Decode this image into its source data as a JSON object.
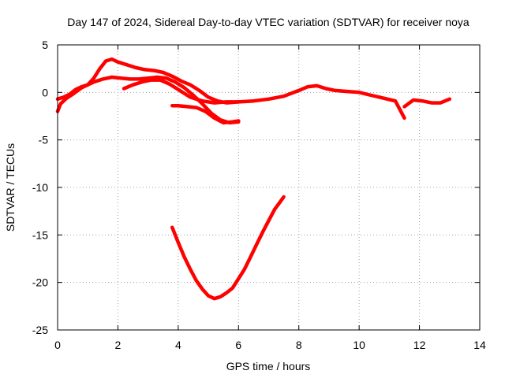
{
  "chart_data": {
    "type": "line",
    "title": "Day 147 of 2024, Sidereal Day-to-day VTEC variation (SDTVAR) for receiver noya",
    "xlabel": "GPS time / hours",
    "ylabel": "SDTVAR / TECUs",
    "xlim": [
      0,
      14
    ],
    "ylim": [
      -25,
      5
    ],
    "xticks": [
      0,
      2,
      4,
      6,
      8,
      10,
      12,
      14
    ],
    "yticks": [
      5,
      0,
      -5,
      -10,
      -15,
      -20,
      -25
    ],
    "grid": true,
    "color": "#ff0000",
    "series": [
      {
        "name": "arc-1",
        "x": [
          0.0,
          0.1,
          0.3,
          0.5,
          0.8,
          1.0,
          1.2,
          1.4,
          1.6,
          1.8,
          2.0,
          2.3,
          2.6,
          2.9,
          3.2,
          3.5,
          3.8,
          4.1,
          4.4,
          4.7,
          5.0,
          5.3,
          5.6,
          6.0,
          6.5,
          7.0,
          7.5,
          8.0,
          8.3,
          8.6,
          8.9,
          9.2,
          9.6,
          10.0,
          10.4,
          10.8,
          11.2,
          11.5
        ],
        "y": [
          -2.0,
          -1.2,
          -0.6,
          -0.2,
          0.5,
          0.8,
          1.5,
          2.5,
          3.3,
          3.5,
          3.2,
          2.9,
          2.6,
          2.4,
          2.3,
          2.1,
          1.7,
          1.2,
          0.8,
          0.2,
          -0.5,
          -0.9,
          -1.1,
          -1.0,
          -0.9,
          -0.7,
          -0.4,
          0.2,
          0.6,
          0.7,
          0.4,
          0.2,
          0.1,
          0.0,
          -0.3,
          -0.6,
          -0.9,
          -2.7
        ]
      },
      {
        "name": "arc-2",
        "x": [
          0.0,
          0.2,
          0.4,
          0.6,
          0.8,
          1.0,
          1.2,
          1.5,
          1.8,
          2.1,
          2.4,
          2.7,
          3.0,
          3.3,
          3.6,
          3.9,
          4.2,
          4.5,
          4.8,
          5.1,
          5.4,
          5.7,
          6.0
        ],
        "y": [
          -0.7,
          -0.5,
          -0.2,
          0.3,
          0.6,
          0.8,
          1.1,
          1.4,
          1.6,
          1.5,
          1.4,
          1.4,
          1.5,
          1.6,
          1.5,
          1.1,
          0.5,
          -0.3,
          -1.2,
          -2.2,
          -2.9,
          -3.2,
          -3.1
        ]
      },
      {
        "name": "arc-3",
        "x": [
          2.2,
          2.5,
          2.8,
          3.1,
          3.4,
          3.7,
          4.0,
          4.4,
          4.8,
          5.2,
          5.6,
          6.0
        ],
        "y": [
          0.4,
          0.8,
          1.1,
          1.3,
          1.3,
          0.9,
          0.3,
          -0.5,
          -0.9,
          -1.1,
          -1.0,
          -1.0
        ]
      },
      {
        "name": "arc-4",
        "x": [
          3.8,
          4.0,
          4.3,
          4.6,
          4.9,
          5.2,
          5.5,
          5.8,
          6.0
        ],
        "y": [
          -1.4,
          -1.4,
          -1.5,
          -1.6,
          -2.0,
          -2.7,
          -3.2,
          -3.1,
          -3.0
        ]
      },
      {
        "name": "arc-5",
        "x": [
          11.5,
          11.8,
          12.1,
          12.4,
          12.7,
          13.0
        ],
        "y": [
          -1.5,
          -0.8,
          -0.9,
          -1.1,
          -1.1,
          -0.7
        ]
      },
      {
        "name": "arc-6",
        "x": [
          3.8,
          4.0,
          4.2,
          4.4,
          4.6,
          4.8,
          5.0,
          5.2,
          5.4,
          5.6,
          5.8,
          6.0,
          6.2,
          6.4,
          6.6,
          6.8,
          7.0,
          7.2,
          7.5
        ],
        "y": [
          -14.2,
          -15.8,
          -17.3,
          -18.6,
          -19.8,
          -20.7,
          -21.4,
          -21.7,
          -21.5,
          -21.1,
          -20.6,
          -19.6,
          -18.6,
          -17.3,
          -16.0,
          -14.7,
          -13.5,
          -12.3,
          -11.0
        ]
      }
    ]
  }
}
